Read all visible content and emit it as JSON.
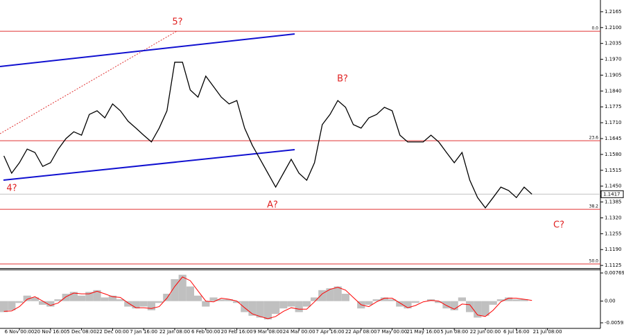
{
  "chart_data": [
    {
      "type": "line",
      "color": "#000000",
      "categories": [
        null,
        null,
        "6 Nov 00:00",
        null,
        null,
        null,
        "20 Nov 16:00",
        null,
        null,
        null,
        "5 Dec 08:00",
        null,
        null,
        null,
        "22 Dec 00:00",
        null,
        null,
        null,
        "7 Jan 16:00",
        null,
        null,
        null,
        "22 Jan 08:00",
        null,
        null,
        null,
        "6 Feb 00:00",
        null,
        null,
        null,
        "20 Feb 16:00",
        null,
        null,
        null,
        "9 Mar 08:00",
        null,
        null,
        null,
        "24 Mar 00:00",
        null,
        null,
        null,
        "7 Apr 16:00",
        null,
        null,
        null,
        "22 Apr 08:00",
        null,
        null,
        null,
        "7 May 00:00",
        null,
        null,
        null,
        "21 May 16:00",
        null,
        null,
        null,
        "5 Jun 08:00",
        null,
        null,
        null,
        "22 Jun 00:00",
        null,
        null,
        null,
        "6 Jul 16:00",
        null,
        null,
        null,
        "21 Jul 08:00"
      ],
      "values": [
        1.1574,
        1.1503,
        1.1546,
        1.1602,
        1.1588,
        1.1531,
        1.1546,
        1.1602,
        1.1645,
        1.1673,
        1.1659,
        1.1744,
        1.1759,
        1.173,
        1.1787,
        1.1759,
        1.1716,
        1.1688,
        1.1659,
        1.1631,
        1.1688,
        1.1759,
        1.1958,
        1.1958,
        1.1844,
        1.1815,
        1.1901,
        1.1858,
        1.1815,
        1.1787,
        1.1801,
        1.1688,
        1.1617,
        1.156,
        1.1503,
        1.1446,
        1.1503,
        1.156,
        1.1503,
        1.1474,
        1.1546,
        1.1702,
        1.1744,
        1.1801,
        1.1773,
        1.1702,
        1.1688,
        1.173,
        1.1744,
        1.1773,
        1.1759,
        1.1659,
        1.1631,
        1.1631,
        1.1631,
        1.1659,
        1.1631,
        1.1588,
        1.1546,
        1.1588,
        1.1474,
        1.1403,
        1.1361,
        1.1403,
        1.1446,
        1.1432,
        1.1403,
        1.1446,
        1.1417,
        null,
        null
      ],
      "ylim": [
        1.1114,
        1.2213
      ],
      "yticks": [
        1.2165,
        {
          "value": 1.21,
          "label": "1.2100"
        },
        1.2035,
        {
          "value": 1.197,
          "label": "1.1970"
        },
        1.1905,
        {
          "value": 1.184,
          "label": "1.1840"
        },
        1.1775,
        {
          "value": 1.171,
          "label": "1.1710"
        },
        1.1645,
        {
          "value": 1.158,
          "label": "1.1580"
        },
        1.1515,
        {
          "value": 1.145,
          "label": "1.1450"
        },
        1.1385,
        {
          "value": 1.132,
          "label": "1.1320"
        },
        1.1255,
        {
          "value": 1.119,
          "label": "1.1190"
        },
        1.1125
      ],
      "last_price": 1.1417,
      "levels": [
        {
          "name": "0.0",
          "value": 1.2085
        },
        {
          "name": "23.6",
          "value": 1.1636
        },
        {
          "name": "38.2",
          "value": 1.1355
        },
        {
          "name": "50.0",
          "value": 1.1131
        }
      ],
      "level_color": "#e03030",
      "annotations": [
        "5?",
        "4?",
        "A?",
        "B?",
        "C?"
      ]
    },
    {
      "type": "bar",
      "series": [
        {
          "color": "#c0c0c0",
          "values": [
            -0.003,
            -0.0025,
            -0.0005,
            0.0015,
            0.001,
            -0.001,
            -0.0015,
            0.0005,
            0.002,
            0.0025,
            0.0015,
            0.0025,
            0.003,
            0.001,
            0.0015,
            0.0005,
            -0.0015,
            -0.002,
            -0.0015,
            -0.0025,
            -0.0005,
            0.002,
            0.006,
            0.0072,
            0.004,
            0.0015,
            -0.0015,
            0.001,
            0.0005,
            0.0005,
            -0.0005,
            -0.003,
            -0.004,
            -0.0045,
            -0.005,
            -0.0035,
            -0.002,
            -0.0015,
            -0.003,
            -0.0015,
            0.001,
            0.003,
            0.0035,
            0.004,
            0.002,
            0,
            -0.002,
            -0.001,
            0.0005,
            0.001,
            0.0005,
            -0.0015,
            -0.002,
            -0.0005,
            0,
            0.0005,
            -0.0005,
            -0.002,
            -0.0025,
            0.001,
            -0.003,
            -0.0045,
            -0.004,
            -0.001,
            0.0005,
            0.001,
            0.0005,
            0.0005,
            0,
            null,
            null
          ]
        },
        {
          "type": "line",
          "color": "#ff0000",
          "values": [
            -0.0028,
            -0.0027,
            -0.0015,
            0.0005,
            0.0012,
            0,
            -0.0012,
            -0.0005,
            0.0012,
            0.0022,
            0.002,
            0.002,
            0.0027,
            0.002,
            0.0012,
            0.001,
            -0.0005,
            -0.0018,
            -0.0018,
            -0.002,
            -0.0015,
            0.0008,
            0.004,
            0.0066,
            0.0056,
            0.0028,
            0,
            -0.0002,
            0.0008,
            0.0005,
            0,
            -0.0018,
            -0.0035,
            -0.0042,
            -0.0048,
            -0.0042,
            -0.0028,
            -0.0018,
            -0.0022,
            -0.0022,
            -0.0002,
            0.002,
            0.0032,
            0.0038,
            0.003,
            0.001,
            -0.001,
            -0.0015,
            -0.0002,
            0.0008,
            0.0008,
            -0.0005,
            -0.0018,
            -0.0012,
            -0.0002,
            0.0002,
            0,
            -0.0012,
            -0.0022,
            -0.0008,
            -0.001,
            -0.0038,
            -0.0042,
            -0.0025,
            -0.0002,
            0.0008,
            0.0008,
            0.0005,
            0.0002,
            null,
            null
          ]
        }
      ],
      "ylim": [
        -0.00745,
        0.00864
      ],
      "yticks": [
        0.00769,
        {
          "value": 0,
          "label": "0.00"
        },
        -0.00593
      ]
    }
  ]
}
